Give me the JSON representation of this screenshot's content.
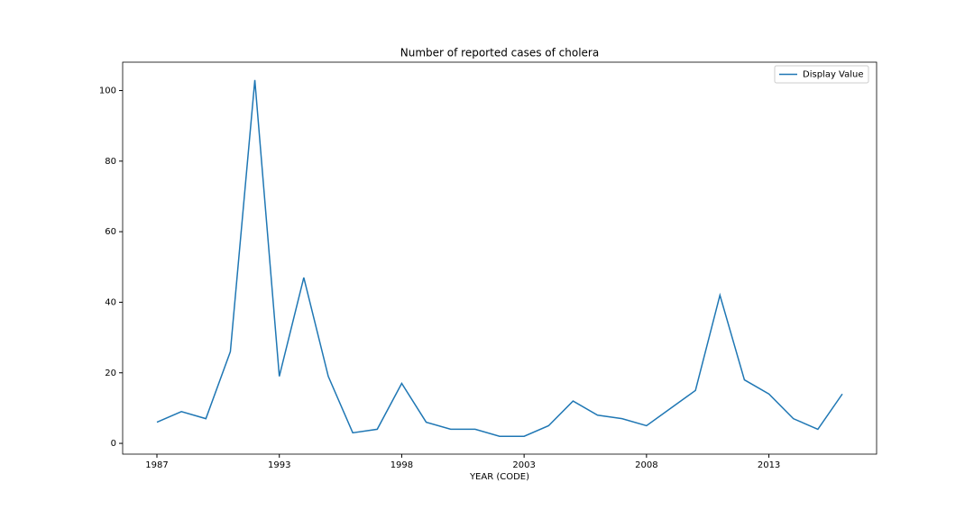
{
  "chart_data": {
    "type": "line",
    "title": "Number of reported cases of cholera",
    "xlabel": "YEAR (CODE)",
    "categories": [
      "1987",
      null,
      null,
      null,
      null,
      "1993",
      null,
      null,
      null,
      null,
      "1998",
      null,
      null,
      null,
      null,
      "2003",
      null,
      null,
      null,
      null,
      "2008",
      null,
      null,
      null,
      null,
      "2013",
      null,
      null,
      null
    ],
    "series": [
      {
        "name": "Display Value",
        "color": "#1f77b4",
        "values": [
          6,
          9,
          7,
          26,
          103,
          19,
          47,
          19,
          3,
          4,
          17,
          6,
          4,
          4,
          2,
          2,
          5,
          12,
          8,
          7,
          5,
          10,
          15,
          42,
          18,
          14,
          7,
          4,
          14
        ]
      }
    ],
    "ylim": [
      -3.05,
      108.05
    ],
    "yticks": [
      0,
      20,
      40,
      60,
      80,
      100
    ],
    "legend": "upper right",
    "grid": false
  }
}
